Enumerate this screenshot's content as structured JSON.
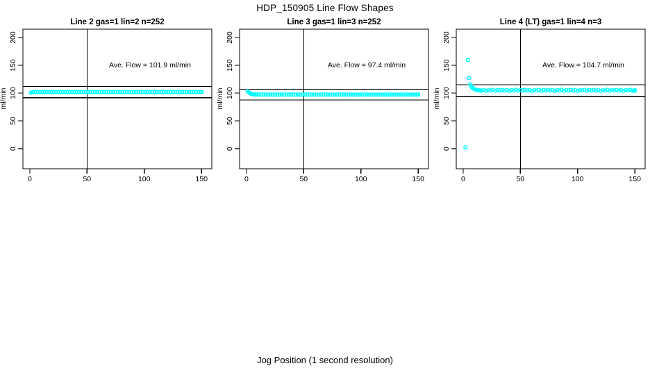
{
  "page": {
    "main_title": "HDP_150905  Line Flow Shapes",
    "bottom_axis_label": "Jog Position (1 second resolution)"
  },
  "chart_data": {
    "type": "scatter",
    "title": "HDP_150905  Line Flow Shapes",
    "xlabel": "Jog Position (1 second resolution)",
    "ylabel": "ml/min",
    "grid": false,
    "legend": "none",
    "point_style": "open-circle",
    "point_color": "#00FFFF",
    "axis_color": "#000000",
    "x_ticks": [
      0,
      50,
      100,
      150
    ],
    "y_ticks": [
      0,
      50,
      100,
      150,
      200
    ],
    "x_range": [
      -6,
      159
    ],
    "y_range": [
      -36,
      215
    ],
    "reference_lines_note": "each panel: vertical line at x=50, horizontal lines at average flow +/-10%",
    "panels": [
      {
        "title": "Line 2 gas=1 lin=2 n=252",
        "annotation": "Ave. Flow =  101.9  ml/min",
        "ave_flow_ml_min": 101.9,
        "vline_x": 50,
        "hlines": [
          112.1,
          91.7
        ],
        "points": [
          [
            1,
            100.8
          ],
          [
            2,
            101.4
          ],
          [
            3,
            101.9
          ],
          [
            5,
            102.2
          ],
          [
            7,
            101.7
          ],
          [
            9,
            102.0
          ],
          [
            11,
            101.6
          ],
          [
            13,
            101.9
          ],
          [
            15,
            102.2
          ],
          [
            17,
            101.7
          ],
          [
            19,
            102.0
          ],
          [
            21,
            101.6
          ],
          [
            23,
            101.9
          ],
          [
            25,
            102.2
          ],
          [
            27,
            101.7
          ],
          [
            29,
            102.0
          ],
          [
            31,
            101.6
          ],
          [
            33,
            101.9
          ],
          [
            35,
            102.2
          ],
          [
            37,
            101.7
          ],
          [
            39,
            102.0
          ],
          [
            41,
            101.6
          ],
          [
            43,
            101.9
          ],
          [
            45,
            102.2
          ],
          [
            47,
            101.7
          ],
          [
            49,
            102.0
          ],
          [
            51,
            101.6
          ],
          [
            53,
            101.9
          ],
          [
            55,
            102.2
          ],
          [
            57,
            101.7
          ],
          [
            59,
            102.0
          ],
          [
            61,
            101.6
          ],
          [
            63,
            101.9
          ],
          [
            65,
            102.2
          ],
          [
            67,
            101.7
          ],
          [
            69,
            102.0
          ],
          [
            71,
            101.6
          ],
          [
            73,
            101.9
          ],
          [
            75,
            102.2
          ],
          [
            77,
            101.7
          ],
          [
            79,
            102.0
          ],
          [
            81,
            101.6
          ],
          [
            83,
            101.9
          ],
          [
            85,
            102.2
          ],
          [
            87,
            101.7
          ],
          [
            89,
            102.0
          ],
          [
            91,
            101.6
          ],
          [
            93,
            101.9
          ],
          [
            95,
            102.2
          ],
          [
            97,
            101.7
          ],
          [
            99,
            102.0
          ],
          [
            101,
            101.6
          ],
          [
            103,
            101.9
          ],
          [
            105,
            102.2
          ],
          [
            107,
            101.7
          ],
          [
            109,
            102.0
          ],
          [
            111,
            101.6
          ],
          [
            113,
            101.9
          ],
          [
            115,
            102.2
          ],
          [
            117,
            101.7
          ],
          [
            119,
            102.0
          ],
          [
            121,
            101.6
          ],
          [
            123,
            101.9
          ],
          [
            125,
            102.2
          ],
          [
            127,
            101.7
          ],
          [
            129,
            102.0
          ],
          [
            131,
            101.6
          ],
          [
            133,
            101.9
          ],
          [
            135,
            102.2
          ],
          [
            137,
            101.7
          ],
          [
            139,
            102.0
          ],
          [
            141,
            101.6
          ],
          [
            143,
            101.9
          ],
          [
            145,
            102.2
          ],
          [
            147,
            101.7
          ],
          [
            149,
            102.0
          ],
          [
            150,
            101.9
          ]
        ]
      },
      {
        "title": "Line 3 gas=1 lin=3 n=252",
        "annotation": "Ave. Flow =  97.4  ml/min",
        "ave_flow_ml_min": 97.4,
        "vline_x": 50,
        "hlines": [
          107.1,
          87.7
        ],
        "points": [
          [
            1,
            103.8
          ],
          [
            2,
            101.5
          ],
          [
            3,
            99.8
          ],
          [
            4,
            98.8
          ],
          [
            5,
            98.2
          ],
          [
            6,
            97.9
          ],
          [
            7,
            97.7
          ],
          [
            8,
            97.5
          ],
          [
            9,
            97.4
          ],
          [
            11,
            97.6
          ],
          [
            13,
            97.2
          ],
          [
            15,
            97.5
          ],
          [
            17,
            97.3
          ],
          [
            19,
            97.4
          ],
          [
            21,
            97.6
          ],
          [
            23,
            97.2
          ],
          [
            25,
            97.5
          ],
          [
            27,
            97.3
          ],
          [
            29,
            97.4
          ],
          [
            31,
            97.6
          ],
          [
            33,
            97.2
          ],
          [
            35,
            97.5
          ],
          [
            37,
            97.3
          ],
          [
            39,
            97.4
          ],
          [
            41,
            97.6
          ],
          [
            43,
            97.2
          ],
          [
            45,
            97.5
          ],
          [
            47,
            97.3
          ],
          [
            49,
            97.4
          ],
          [
            51,
            97.6
          ],
          [
            53,
            97.2
          ],
          [
            55,
            97.5
          ],
          [
            57,
            97.3
          ],
          [
            59,
            97.4
          ],
          [
            61,
            97.6
          ],
          [
            63,
            97.2
          ],
          [
            65,
            97.5
          ],
          [
            67,
            97.3
          ],
          [
            69,
            97.4
          ],
          [
            71,
            97.6
          ],
          [
            73,
            97.2
          ],
          [
            75,
            97.5
          ],
          [
            77,
            97.3
          ],
          [
            79,
            97.4
          ],
          [
            81,
            97.6
          ],
          [
            83,
            97.2
          ],
          [
            85,
            97.5
          ],
          [
            87,
            97.3
          ],
          [
            89,
            97.4
          ],
          [
            91,
            97.6
          ],
          [
            93,
            97.2
          ],
          [
            95,
            97.5
          ],
          [
            97,
            97.3
          ],
          [
            99,
            97.4
          ],
          [
            101,
            97.6
          ],
          [
            103,
            97.2
          ],
          [
            105,
            97.5
          ],
          [
            107,
            97.3
          ],
          [
            109,
            97.4
          ],
          [
            111,
            97.6
          ],
          [
            113,
            97.2
          ],
          [
            115,
            97.5
          ],
          [
            117,
            97.3
          ],
          [
            119,
            97.4
          ],
          [
            121,
            97.6
          ],
          [
            123,
            97.2
          ],
          [
            125,
            97.5
          ],
          [
            127,
            97.3
          ],
          [
            129,
            97.4
          ],
          [
            131,
            97.6
          ],
          [
            133,
            97.2
          ],
          [
            135,
            97.5
          ],
          [
            137,
            97.3
          ],
          [
            139,
            97.4
          ],
          [
            141,
            97.6
          ],
          [
            143,
            97.2
          ],
          [
            145,
            97.5
          ],
          [
            147,
            97.3
          ],
          [
            149,
            97.4
          ],
          [
            150,
            97.4
          ]
        ]
      },
      {
        "title": "Line 4 (LT) gas=1 lin=4 n=3",
        "annotation": "Ave. Flow =  104.7  ml/min",
        "ave_flow_ml_min": 104.7,
        "vline_x": 50,
        "hlines": [
          115.2,
          94.2
        ],
        "points": [
          [
            2,
            2.5
          ],
          [
            4,
            160
          ],
          [
            5,
            127
          ],
          [
            6,
            116
          ],
          [
            7,
            112.5
          ],
          [
            8,
            110
          ],
          [
            9,
            108.2
          ],
          [
            10,
            107
          ],
          [
            11,
            106.2
          ],
          [
            12,
            105.6
          ],
          [
            13,
            105.2
          ],
          [
            14,
            104.9
          ],
          [
            15,
            104.7
          ],
          [
            16,
            104.6
          ],
          [
            18,
            105.6
          ],
          [
            20,
            104.1
          ],
          [
            22,
            105.2
          ],
          [
            24,
            104.8
          ],
          [
            26,
            106.0
          ],
          [
            28,
            104.3
          ],
          [
            30,
            105.4
          ],
          [
            32,
            104.9
          ],
          [
            34,
            105.8
          ],
          [
            36,
            104.6
          ],
          [
            38,
            105.6
          ],
          [
            40,
            104.1
          ],
          [
            42,
            105.2
          ],
          [
            44,
            104.8
          ],
          [
            46,
            106.0
          ],
          [
            48,
            104.3
          ],
          [
            50,
            105.4
          ],
          [
            52,
            104.9
          ],
          [
            54,
            105.8
          ],
          [
            56,
            104.6
          ],
          [
            58,
            105.6
          ],
          [
            60,
            104.1
          ],
          [
            62,
            105.2
          ],
          [
            64,
            104.8
          ],
          [
            66,
            106.0
          ],
          [
            68,
            104.3
          ],
          [
            70,
            105.4
          ],
          [
            72,
            104.9
          ],
          [
            74,
            105.8
          ],
          [
            76,
            104.6
          ],
          [
            78,
            105.6
          ],
          [
            80,
            104.1
          ],
          [
            82,
            105.2
          ],
          [
            84,
            104.8
          ],
          [
            86,
            106.0
          ],
          [
            88,
            104.3
          ],
          [
            90,
            105.4
          ],
          [
            92,
            104.9
          ],
          [
            94,
            105.8
          ],
          [
            96,
            104.6
          ],
          [
            98,
            105.6
          ],
          [
            100,
            104.1
          ],
          [
            102,
            105.2
          ],
          [
            104,
            104.8
          ],
          [
            106,
            106.0
          ],
          [
            108,
            104.3
          ],
          [
            110,
            105.4
          ],
          [
            112,
            104.9
          ],
          [
            114,
            105.8
          ],
          [
            116,
            104.6
          ],
          [
            118,
            105.6
          ],
          [
            120,
            104.1
          ],
          [
            122,
            105.2
          ],
          [
            124,
            104.8
          ],
          [
            126,
            106.0
          ],
          [
            128,
            104.3
          ],
          [
            130,
            105.4
          ],
          [
            132,
            104.9
          ],
          [
            134,
            105.8
          ],
          [
            136,
            104.6
          ],
          [
            138,
            105.6
          ],
          [
            140,
            104.1
          ],
          [
            142,
            105.2
          ],
          [
            144,
            104.8
          ],
          [
            146,
            106.0
          ],
          [
            148,
            104.3
          ],
          [
            149,
            104.2
          ],
          [
            150,
            105.4
          ],
          [
            150,
            104.4
          ]
        ]
      }
    ]
  }
}
